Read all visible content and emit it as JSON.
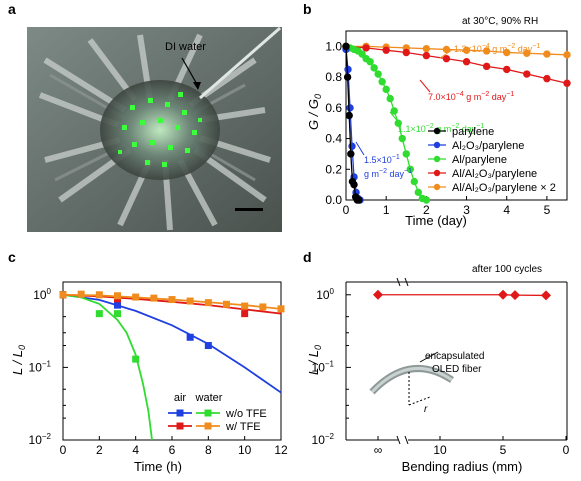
{
  "panels": {
    "a": {
      "letter": "a",
      "photo_label": "DI water"
    },
    "b": {
      "letter": "b",
      "corner_note": "at 30°C, 90% RH",
      "xlabel": "Time (day)",
      "ylabel_main": "G / G",
      "ylabel_sub": "0",
      "annotations": {
        "ann1_pre": "1.2×10",
        "ann1_exp": "−4",
        "ann1_post": " g m",
        "ann2_pre": "7.0×10",
        "ann2_exp": "−4",
        "ann2_post": " g m",
        "ann3_pre": "1.1×10",
        "ann3_exp": "−2",
        "ann3_post": " g m",
        "ann4_line1": "1.5×10",
        "ann4_exp": "−1",
        "ann4_line2": "g m",
        "unit_sq": "−2",
        "day": " day",
        "day_exp": "−1"
      }
    },
    "c": {
      "letter": "c",
      "xlabel": "Time (h)",
      "ylabel_main": "L / L",
      "ylabel_sub": "0",
      "legend_header_air": "air",
      "legend_header_water": "water",
      "legend_row1": "w/o TFE",
      "legend_row2": "w/  TFE"
    },
    "d": {
      "letter": "d",
      "corner_note": "after 100 cycles",
      "xlabel": "Bending radius (mm)",
      "ylabel_main": "L / L",
      "ylabel_sub": "0",
      "inset_text_1": "encapsulated",
      "inset_text_2": "OLED fiber",
      "inset_r": "r"
    }
  },
  "chart_data": [
    {
      "panel": "b",
      "type": "line",
      "xlabel": "Time (day)",
      "ylabel": "G/G0",
      "xlim": [
        0,
        5.5
      ],
      "ylim": [
        0,
        1.1
      ],
      "xticks": [
        0,
        1,
        2,
        3,
        4,
        5
      ],
      "yticks": [
        0.0,
        0.2,
        0.4,
        0.6,
        0.8,
        1.0
      ],
      "ytick_labels": [
        "0.0",
        "0.2",
        "0.4",
        "0.6",
        "0.8",
        "1.0"
      ],
      "legend": "right",
      "series": [
        {
          "name": "parylene",
          "color": "#000000",
          "marker": "circle",
          "x": [
            0.0,
            0.04,
            0.08,
            0.12,
            0.16,
            0.2,
            0.24,
            0.28,
            0.32
          ],
          "y": [
            1.0,
            0.8,
            0.55,
            0.3,
            0.12,
            0.1,
            0.02,
            0.0,
            0.0
          ]
        },
        {
          "name": "Al2O3/parylene",
          "color": "#1f3fe0",
          "marker": "circle",
          "x": [
            0.0,
            0.05,
            0.1,
            0.15,
            0.2,
            0.25,
            0.3,
            0.35
          ],
          "y": [
            0.98,
            0.85,
            0.6,
            0.35,
            0.15,
            0.05,
            0.01,
            0.0
          ]
        },
        {
          "name": "Al/parylene",
          "color": "#2fdc2f",
          "marker": "circle",
          "x": [
            0.0,
            0.1,
            0.2,
            0.3,
            0.4,
            0.5,
            0.6,
            0.7,
            0.8,
            0.9,
            1.0,
            1.1,
            1.2,
            1.3,
            1.4,
            1.5,
            1.6,
            1.7,
            1.8,
            1.9,
            2.0
          ],
          "y": [
            1.0,
            0.99,
            0.98,
            0.97,
            0.95,
            0.92,
            0.9,
            0.86,
            0.82,
            0.77,
            0.72,
            0.66,
            0.58,
            0.5,
            0.4,
            0.3,
            0.2,
            0.12,
            0.05,
            0.01,
            0.0
          ]
        },
        {
          "name": "Al/Al2O3/parylene",
          "color": "#e01818",
          "marker": "circle",
          "x": [
            0.0,
            0.5,
            1.0,
            1.5,
            2.0,
            2.5,
            3.0,
            3.5,
            4.0,
            4.5,
            5.0,
            5.5
          ],
          "y": [
            1.0,
            0.99,
            0.975,
            0.96,
            0.94,
            0.92,
            0.9,
            0.87,
            0.85,
            0.82,
            0.79,
            0.76
          ]
        },
        {
          "name": "Al/Al2O3/parylene×2",
          "color": "#f08c1e",
          "marker": "circle",
          "x": [
            0.0,
            0.5,
            1.0,
            1.5,
            2.0,
            2.5,
            3.0,
            3.5,
            4.0,
            4.5,
            5.0,
            5.5
          ],
          "y": [
            1.0,
            1.0,
            0.995,
            0.99,
            0.985,
            0.98,
            0.975,
            0.97,
            0.96,
            0.955,
            0.95,
            0.945
          ]
        }
      ]
    },
    {
      "panel": "c",
      "type": "scatter",
      "xlabel": "Time (h)",
      "ylabel": "L/L0",
      "xlim": [
        0,
        12
      ],
      "ylim": [
        0.01,
        1.5
      ],
      "yscale": "log",
      "xticks": [
        0,
        2,
        4,
        6,
        8,
        10,
        12
      ],
      "legend": "bottom-right",
      "series": [
        {
          "name": "air w/o TFE",
          "color": "#1f3fe0",
          "marker": "square",
          "x": [
            0,
            3,
            7,
            8
          ],
          "y": [
            1.0,
            0.72,
            0.26,
            0.2
          ],
          "fit_x": [
            0,
            2,
            4,
            6,
            8,
            10,
            12
          ],
          "fit_y": [
            1.0,
            0.85,
            0.6,
            0.38,
            0.21,
            0.1,
            0.045
          ]
        },
        {
          "name": "water w/o TFE",
          "color": "#2fdc2f",
          "marker": "square",
          "x": [
            0,
            2,
            3,
            4
          ],
          "y": [
            1.0,
            0.55,
            0.55,
            0.13
          ],
          "fit_x": [
            0,
            1,
            2,
            3,
            3.5,
            4,
            4.4,
            4.7,
            4.9
          ],
          "fit_y": [
            1.0,
            0.92,
            0.75,
            0.45,
            0.3,
            0.15,
            0.06,
            0.025,
            0.01
          ]
        },
        {
          "name": "air w/ TFE",
          "color": "#e01818",
          "marker": "square",
          "x": [
            0,
            3,
            10
          ],
          "y": [
            1.0,
            0.88,
            0.55
          ],
          "fit_x": [
            0,
            2,
            4,
            6,
            8,
            10,
            12
          ],
          "fit_y": [
            1.0,
            0.95,
            0.88,
            0.8,
            0.72,
            0.63,
            0.55
          ]
        },
        {
          "name": "water w/ TFE",
          "color": "#f08c1e",
          "marker": "square",
          "x": [
            0,
            1,
            2,
            3,
            4,
            5,
            6,
            7,
            8,
            9,
            10,
            11,
            12
          ],
          "y": [
            1.0,
            1.02,
            1.0,
            0.97,
            0.93,
            0.9,
            0.86,
            0.82,
            0.78,
            0.74,
            0.7,
            0.68,
            0.64
          ],
          "fit_x": [
            0,
            2,
            4,
            6,
            8,
            10,
            12
          ],
          "fit_y": [
            1.0,
            0.98,
            0.92,
            0.86,
            0.79,
            0.72,
            0.64
          ]
        }
      ]
    },
    {
      "panel": "d",
      "type": "line",
      "xlabel": "Bending radius (mm)",
      "ylabel": "L/L0",
      "yscale": "log",
      "ylim": [
        0.01,
        1.5
      ],
      "x_categories": [
        "∞",
        "10",
        "5",
        "0"
      ],
      "xticks_labels": [
        "∞",
        "10",
        "5",
        "0"
      ],
      "series": [
        {
          "name": "after 100 cycles",
          "color": "#e01818",
          "marker": "diamond",
          "x": [
            "∞",
            "5",
            "3",
            "1"
          ],
          "y": [
            1.0,
            1.0,
            0.99,
            0.98
          ]
        }
      ]
    }
  ],
  "colors": {
    "black": "#000000",
    "blue": "#1f3fe0",
    "green": "#2fdc2f",
    "red": "#e01818",
    "orange": "#f08c1e"
  },
  "legend_b": [
    {
      "label": "parylene"
    },
    {
      "label": "Al₂O₃/parylene"
    },
    {
      "label": "Al/parylene"
    },
    {
      "label": "Al/Al₂O₃/parylene"
    },
    {
      "label": "Al/Al₂O₃/parylene × 2"
    }
  ]
}
